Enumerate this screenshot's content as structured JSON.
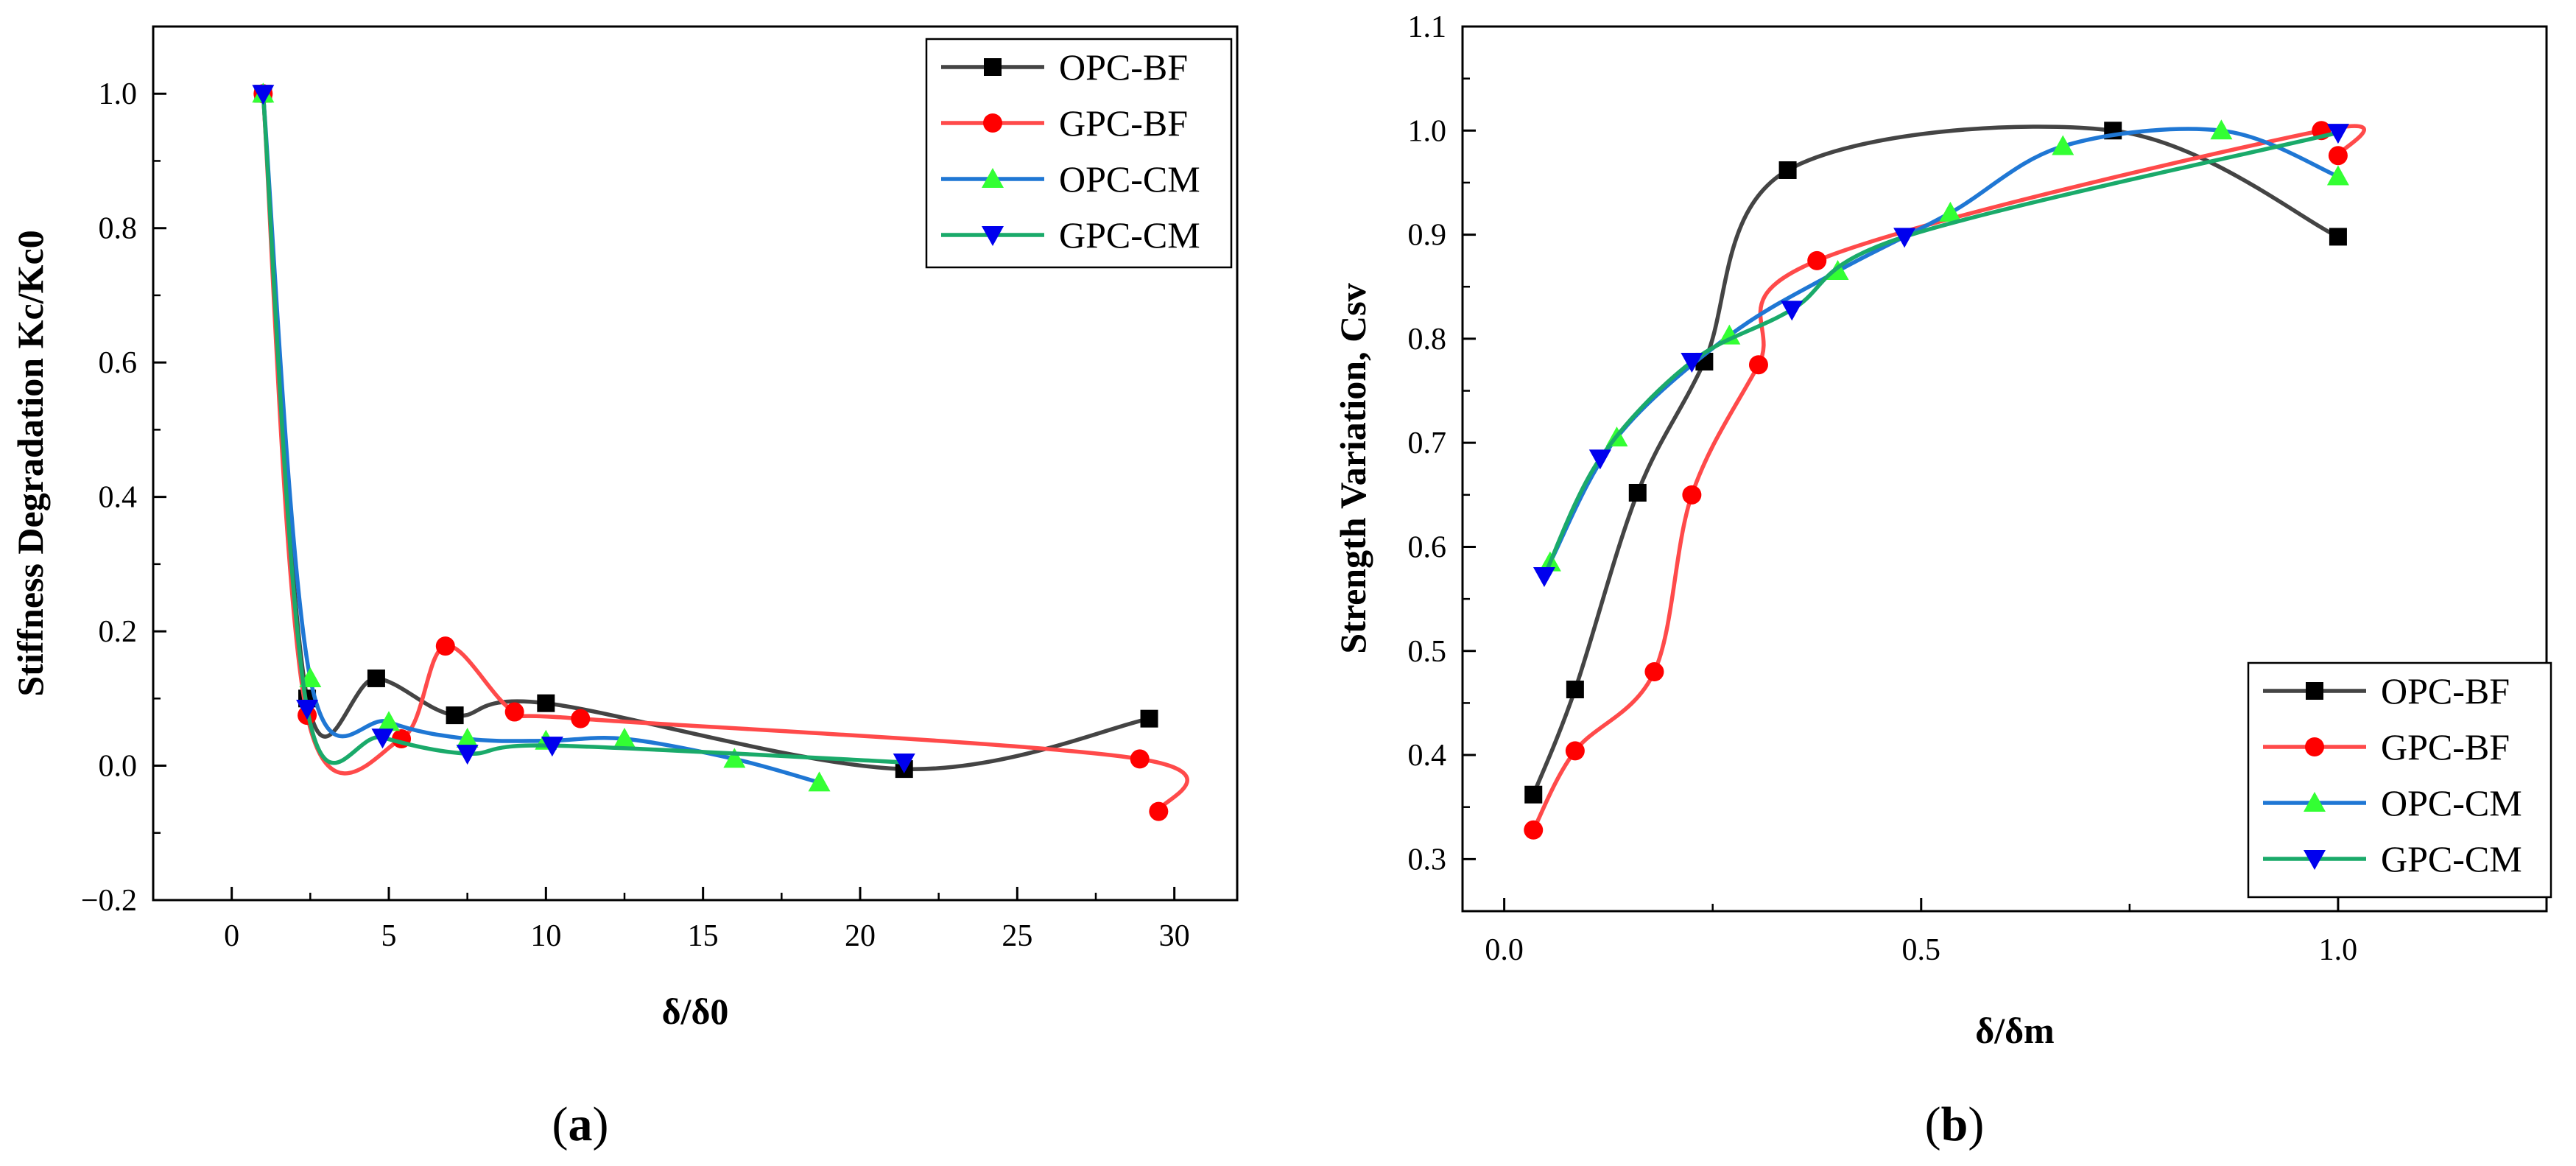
{
  "chart_data": [
    {
      "type": "line",
      "panel_label": "a",
      "xlabel": "δ/δ0",
      "ylabel": "Stiffness Degradation Kc/Kc0",
      "xlim": [
        -2.5,
        32
      ],
      "ylim": [
        -0.2,
        1.1
      ],
      "x_ticks": [
        0,
        5,
        10,
        15,
        20,
        25,
        30
      ],
      "y_ticks": [
        -0.2,
        0.0,
        0.2,
        0.4,
        0.6,
        0.8,
        1.0
      ],
      "x_tick_labels": [
        "0",
        "5",
        "10",
        "15",
        "20",
        "25",
        "30"
      ],
      "y_tick_labels": [
        "−0.2",
        "0.0",
        "0.2",
        "0.4",
        "0.6",
        "0.8",
        "1.0"
      ],
      "grid": false,
      "legend_position": "top-right",
      "series": [
        {
          "name": "OPC-BF",
          "color": "#444444",
          "marker": "square",
          "marker_color": "#000000",
          "x": [
            1,
            2.4,
            4.6,
            7.1,
            10.0,
            21.4,
            29.2
          ],
          "y": [
            1.0,
            0.1,
            0.13,
            0.075,
            0.093,
            -0.005,
            0.07
          ]
        },
        {
          "name": "GPC-BF",
          "color": "#ff4a4a",
          "marker": "circle",
          "marker_color": "#ff0000",
          "x": [
            1,
            2.4,
            5.4,
            6.8,
            9.0,
            11.1,
            28.9,
            29.5
          ],
          "y": [
            1.0,
            0.075,
            0.04,
            0.178,
            0.08,
            0.07,
            0.01,
            -0.068
          ]
        },
        {
          "name": "OPC-CM",
          "color": "#1f77d4",
          "marker": "triangle-up",
          "marker_color": "#33ff33",
          "x": [
            1,
            2.5,
            5.0,
            7.5,
            10.0,
            12.5,
            16.0,
            18.7
          ],
          "y": [
            1.0,
            0.13,
            0.065,
            0.04,
            0.037,
            0.04,
            0.01,
            -0.025
          ]
        },
        {
          "name": "GPC-CM",
          "color": "#1aaa6a",
          "marker": "triangle-down",
          "marker_color": "#0000ee",
          "x": [
            1,
            2.4,
            4.8,
            7.5,
            10.2,
            21.4
          ],
          "y": [
            1.0,
            0.085,
            0.042,
            0.018,
            0.03,
            0.005
          ]
        }
      ]
    },
    {
      "type": "line",
      "panel_label": "b",
      "xlabel": "δ/δm",
      "ylabel": "Strength Variation, Csv",
      "xlim": [
        -0.05,
        1.25
      ],
      "ylim": [
        0.25,
        1.1
      ],
      "x_ticks": [
        0.0,
        0.5,
        1.0
      ],
      "y_ticks": [
        0.3,
        0.4,
        0.5,
        0.6,
        0.7,
        0.8,
        0.9,
        1.0,
        1.1
      ],
      "x_tick_labels": [
        "0.0",
        "0.5",
        "1.0"
      ],
      "y_tick_labels": [
        "0.3",
        "0.4",
        "0.5",
        "0.6",
        "0.7",
        "0.8",
        "0.9",
        "1.0",
        "1.1"
      ],
      "grid": false,
      "legend_position": "bottom-right",
      "series": [
        {
          "name": "OPC-BF",
          "color": "#444444",
          "marker": "square",
          "marker_color": "#000000",
          "x": [
            0.035,
            0.085,
            0.16,
            0.24,
            0.34,
            0.73,
            1.0
          ],
          "y": [
            0.362,
            0.463,
            0.652,
            0.778,
            0.962,
            1.0,
            0.898
          ]
        },
        {
          "name": "GPC-BF",
          "color": "#ff4a4a",
          "marker": "circle",
          "marker_color": "#ff0000",
          "x": [
            0.035,
            0.085,
            0.18,
            0.225,
            0.305,
            0.375,
            0.98,
            1.0
          ],
          "y": [
            0.328,
            0.404,
            0.48,
            0.65,
            0.775,
            0.875,
            1.0,
            0.976
          ]
        },
        {
          "name": "OPC-CM",
          "color": "#1f77d4",
          "marker": "triangle-up",
          "marker_color": "#33ff33",
          "x": [
            0.055,
            0.135,
            0.27,
            0.4,
            0.535,
            0.67,
            0.86,
            1.0
          ],
          "y": [
            0.585,
            0.705,
            0.803,
            0.865,
            0.921,
            0.985,
            1.0,
            0.956
          ]
        },
        {
          "name": "GPC-CM",
          "color": "#1aaa6a",
          "marker": "triangle-down",
          "marker_color": "#0000ee",
          "x": [
            0.048,
            0.115,
            0.225,
            0.345,
            0.48,
            1.0
          ],
          "y": [
            0.572,
            0.685,
            0.778,
            0.828,
            0.898,
            0.998
          ]
        }
      ]
    }
  ]
}
